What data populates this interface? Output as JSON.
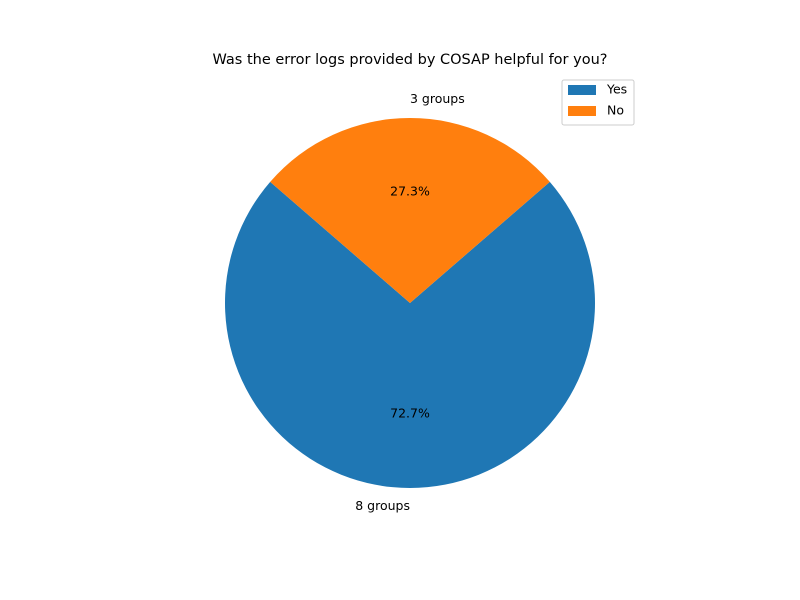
{
  "chart_data": {
    "type": "pie",
    "title": "Was the error logs provided by COSAP helpful for you?",
    "slices": [
      {
        "name": "Yes",
        "value": 8,
        "label": "8 groups",
        "percent_label": "72.7%",
        "color": "#1f77b4"
      },
      {
        "name": "No",
        "value": 3,
        "label": "3 groups",
        "percent_label": "27.3%",
        "color": "#ff7f0e"
      }
    ],
    "legend": {
      "placement": "top-right",
      "entries": [
        "Yes",
        "No"
      ]
    }
  }
}
